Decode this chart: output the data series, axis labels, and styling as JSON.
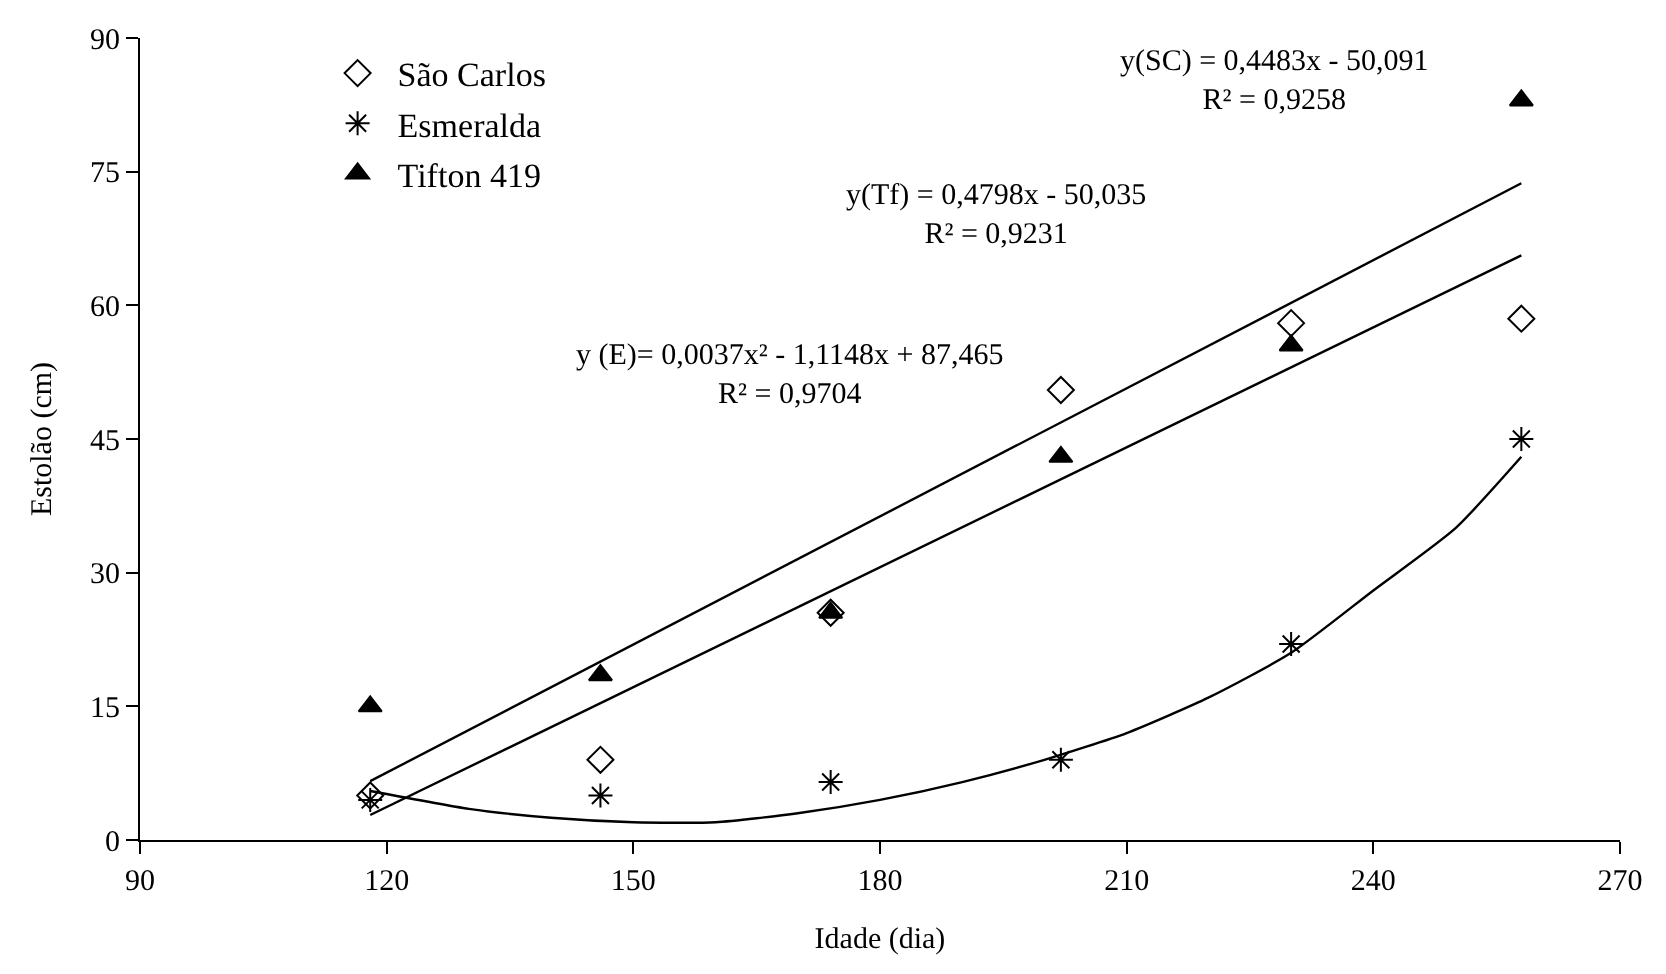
{
  "chart_data": {
    "type": "scatter",
    "xlabel": "Idade (dia)",
    "ylabel": "Estolão (cm)",
    "x": [
      118,
      146,
      174,
      202,
      230,
      258
    ],
    "xlim": [
      90,
      270
    ],
    "xticks": [
      90,
      120,
      150,
      180,
      210,
      240,
      270
    ],
    "ylim": [
      0,
      90
    ],
    "yticks": [
      0,
      15,
      30,
      45,
      60,
      75,
      90
    ],
    "legend": "top left",
    "series": [
      {
        "name": "São Carlos",
        "color": "#000000",
        "marker": "diamond",
        "values": [
          5,
          9,
          25.5,
          50.5,
          58,
          58.5
        ]
      },
      {
        "name": "Esmeralda",
        "color": "#000000",
        "marker": "cross",
        "values": [
          4.5,
          5,
          6.5,
          9,
          22,
          45
        ]
      },
      {
        "name": "Tifton 419",
        "color": "#000000",
        "marker": "triangle",
        "values": [
          15,
          18.5,
          25.5,
          43,
          55.5,
          83
        ]
      },
      {
        "type": "line",
        "color": "#000000",
        "x": [
          118,
          258
        ],
        "values": [
          2.8,
          65.6
        ]
      },
      {
        "type": "line",
        "color": "#000000",
        "x": [
          118,
          258
        ],
        "values": [
          6.6,
          73.7
        ]
      },
      {
        "type": "line",
        "color": "#000000",
        "x": [
          118,
          130,
          140,
          150,
          160,
          170,
          180,
          190,
          200,
          210,
          220,
          230,
          240,
          250,
          258
        ],
        "values": [
          5.5,
          3.5,
          2.5,
          2,
          2,
          3,
          4.5,
          6.5,
          9,
          12,
          16,
          21,
          28,
          35,
          43
        ]
      }
    ],
    "annotations": [
      "y(SC) = 0,4483x - 50,091\nR² = 0,9258",
      "y(Tf) = 0,4798x - 50,035\nR² = 0,9231",
      "y (E)= 0,0037x² - 1,1148x + 87,465\nR² = 0,9704"
    ]
  }
}
